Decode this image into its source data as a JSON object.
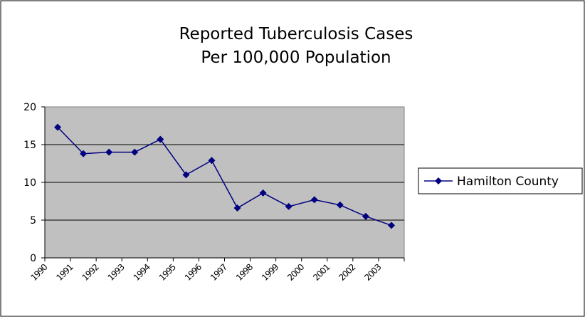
{
  "chart_data": {
    "type": "line",
    "title": "Reported Tuberculosis Cases",
    "subtitle": "Per 100,000 Population",
    "categories": [
      "1990",
      "1991",
      "1992",
      "1993",
      "1994",
      "1995",
      "1996",
      "1997",
      "1998",
      "1999",
      "2000",
      "2001",
      "2002",
      "2003"
    ],
    "series": [
      {
        "name": "Hamilton County",
        "color": "#000080",
        "values": [
          17.3,
          13.8,
          14.0,
          14.0,
          15.7,
          11.0,
          12.9,
          6.6,
          8.6,
          6.8,
          7.7,
          7.0,
          5.5,
          4.3
        ]
      }
    ],
    "ylim": [
      0,
      20
    ],
    "yticks": [
      0,
      5,
      10,
      15,
      20
    ],
    "grid": true,
    "legend": "right"
  }
}
